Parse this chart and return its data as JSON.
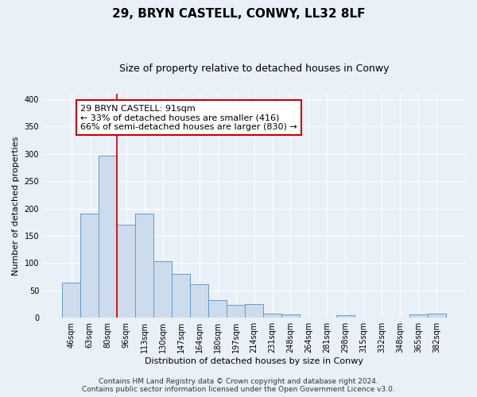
{
  "title": "29, BRYN CASTELL, CONWY, LL32 8LF",
  "subtitle": "Size of property relative to detached houses in Conwy",
  "xlabel": "Distribution of detached houses by size in Conwy",
  "ylabel": "Number of detached properties",
  "bin_labels": [
    "46sqm",
    "63sqm",
    "80sqm",
    "96sqm",
    "113sqm",
    "130sqm",
    "147sqm",
    "164sqm",
    "180sqm",
    "197sqm",
    "214sqm",
    "231sqm",
    "248sqm",
    "264sqm",
    "281sqm",
    "298sqm",
    "315sqm",
    "332sqm",
    "348sqm",
    "365sqm",
    "382sqm"
  ],
  "bar_heights": [
    65,
    190,
    297,
    170,
    190,
    104,
    80,
    62,
    33,
    24,
    25,
    8,
    7,
    0,
    0,
    5,
    0,
    0,
    0,
    7,
    8
  ],
  "bar_color": "#ccdcec",
  "bar_edge_color": "#6699cc",
  "vline_color": "#cc0000",
  "vline_x": 2.5,
  "annotation_line1": "29 BRYN CASTELL: 91sqm",
  "annotation_line2": "← 33% of detached houses are smaller (416)",
  "annotation_line3": "66% of semi-detached houses are larger (830) →",
  "annotation_box_color": "white",
  "annotation_box_edge_color": "#cc0000",
  "ylim": [
    0,
    410
  ],
  "yticks": [
    0,
    50,
    100,
    150,
    200,
    250,
    300,
    350,
    400
  ],
  "footer_line1": "Contains HM Land Registry data © Crown copyright and database right 2024.",
  "footer_line2": "Contains public sector information licensed under the Open Government Licence v3.0.",
  "bg_color": "#eaf0f8",
  "plot_bg_color": "#eaf0f8",
  "grid_color": "white",
  "title_fontsize": 11,
  "subtitle_fontsize": 9,
  "axis_label_fontsize": 8,
  "tick_fontsize": 7,
  "annotation_fontsize": 8,
  "footer_fontsize": 6.5
}
